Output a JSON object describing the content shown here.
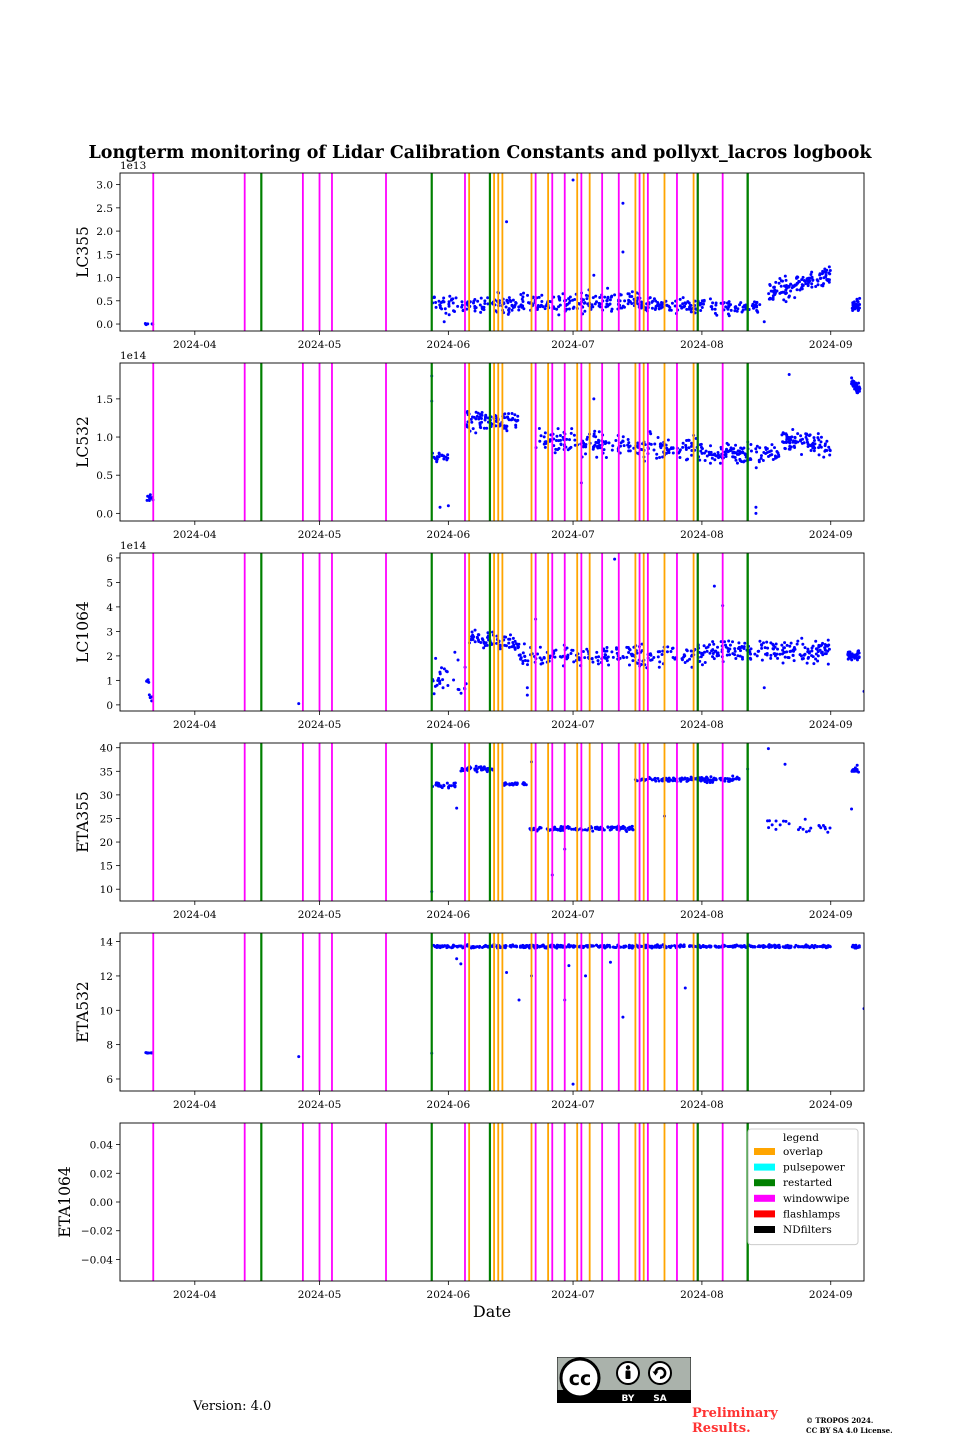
{
  "figure_title": "Longterm monitoring of Lidar Calibration Constants and pollyxt_lacros logbook",
  "footer": {
    "version": "Version: 4.0",
    "preliminary_line1": "Preliminary",
    "preliminary_line2": "Results.",
    "copyright_line1": "© TROPOS 2024.",
    "copyright_line2": "CC BY SA 4.0 License.",
    "license_badge_by": "BY",
    "license_badge_sa": "SA",
    "license_badge_cc": "cc"
  },
  "chart_data": {
    "type": "scatter",
    "xlabel": "Date",
    "x_range": [
      "2024-03-14",
      "2024-09-09"
    ],
    "x_ticks": [
      "2024-04",
      "2024-05",
      "2024-06",
      "2024-07",
      "2024-08",
      "2024-09"
    ],
    "x_tick_dates": [
      "2024-04-01",
      "2024-05-01",
      "2024-06-01",
      "2024-07-01",
      "2024-08-01",
      "2024-09-01"
    ],
    "point_color": "#0000ff",
    "legend": {
      "title": "legend",
      "location": "upper right (bottom panel)",
      "entries": [
        {
          "label": "overlap",
          "color": "#ffa500"
        },
        {
          "label": "pulsepower",
          "color": "#00ffff"
        },
        {
          "label": "restarted",
          "color": "#008000"
        },
        {
          "label": "windowwipe",
          "color": "#ff00ff"
        },
        {
          "label": "flashlamps",
          "color": "#ff0000"
        },
        {
          "label": "NDfilters",
          "color": "#000000"
        }
      ]
    },
    "logbook_events": [
      {
        "date": "2024-03-22",
        "type": "windowwipe"
      },
      {
        "date": "2024-04-13",
        "type": "windowwipe"
      },
      {
        "date": "2024-04-17",
        "type": "restarted"
      },
      {
        "date": "2024-04-27",
        "type": "windowwipe"
      },
      {
        "date": "2024-05-01",
        "type": "windowwipe"
      },
      {
        "date": "2024-05-04",
        "type": "windowwipe"
      },
      {
        "date": "2024-05-17",
        "type": "windowwipe"
      },
      {
        "date": "2024-05-28",
        "type": "restarted"
      },
      {
        "date": "2024-06-05",
        "type": "windowwipe"
      },
      {
        "date": "2024-06-06",
        "type": "overlap"
      },
      {
        "date": "2024-06-11",
        "type": "windowwipe"
      },
      {
        "date": "2024-06-11",
        "type": "restarted"
      },
      {
        "date": "2024-06-12",
        "type": "overlap"
      },
      {
        "date": "2024-06-13",
        "type": "overlap"
      },
      {
        "date": "2024-06-14",
        "type": "overlap"
      },
      {
        "date": "2024-06-21",
        "type": "overlap"
      },
      {
        "date": "2024-06-22",
        "type": "windowwipe"
      },
      {
        "date": "2024-06-25",
        "type": "overlap"
      },
      {
        "date": "2024-06-26",
        "type": "windowwipe"
      },
      {
        "date": "2024-06-29",
        "type": "windowwipe"
      },
      {
        "date": "2024-07-02",
        "type": "overlap"
      },
      {
        "date": "2024-07-03",
        "type": "windowwipe"
      },
      {
        "date": "2024-07-05",
        "type": "overlap"
      },
      {
        "date": "2024-07-08",
        "type": "windowwipe"
      },
      {
        "date": "2024-07-12",
        "type": "windowwipe"
      },
      {
        "date": "2024-07-16",
        "type": "overlap"
      },
      {
        "date": "2024-07-17",
        "type": "windowwipe"
      },
      {
        "date": "2024-07-18",
        "type": "overlap"
      },
      {
        "date": "2024-07-19",
        "type": "windowwipe"
      },
      {
        "date": "2024-07-23",
        "type": "overlap"
      },
      {
        "date": "2024-07-26",
        "type": "windowwipe"
      },
      {
        "date": "2024-07-30",
        "type": "overlap"
      },
      {
        "date": "2024-07-31",
        "type": "windowwipe"
      },
      {
        "date": "2024-07-31",
        "type": "restarted"
      },
      {
        "date": "2024-08-06",
        "type": "windowwipe"
      },
      {
        "date": "2024-08-12",
        "type": "restarted"
      },
      {
        "date": "2024-08-12",
        "type": "restarted"
      }
    ],
    "panels": [
      {
        "ylabel": "LC355",
        "ylim": [
          -0.15,
          3.25
        ],
        "yticks": [
          0.0,
          0.5,
          1.0,
          1.5,
          2.0,
          2.5,
          3.0
        ],
        "ytick_labels": [
          "0.0",
          "0.5",
          "1.0",
          "1.5",
          "2.0",
          "2.5",
          "3.0"
        ],
        "offset_label": "1e13",
        "series": [
          {
            "start": "2024-03-20",
            "end": "2024-03-22",
            "count": 6,
            "center": 0.0,
            "spread": 0.01,
            "trend": 0
          },
          {
            "start": "2024-05-28",
            "end": "2024-07-20",
            "count": 300,
            "center": 0.45,
            "spread": 0.18,
            "trend": 0.05
          },
          {
            "start": "2024-07-20",
            "end": "2024-08-15",
            "count": 140,
            "center": 0.38,
            "spread": 0.12,
            "trend": -0.05
          },
          {
            "start": "2024-08-17",
            "end": "2024-09-01",
            "count": 130,
            "center": 0.85,
            "spread": 0.18,
            "trend": 0.4
          },
          {
            "start": "2024-09-06",
            "end": "2024-09-08",
            "count": 40,
            "center": 0.4,
            "spread": 0.12,
            "trend": 0
          }
        ],
        "outliers": [
          {
            "date": "2024-06-15",
            "value": 2.2
          },
          {
            "date": "2024-07-01",
            "value": 3.1
          },
          {
            "date": "2024-07-13",
            "value": 2.6
          },
          {
            "date": "2024-07-13",
            "value": 1.55
          },
          {
            "date": "2024-07-06",
            "value": 1.05
          },
          {
            "date": "2024-05-31",
            "value": 0.05
          },
          {
            "date": "2024-08-16",
            "value": 0.05
          }
        ]
      },
      {
        "ylabel": "LC532",
        "ylim": [
          -0.1,
          1.97
        ],
        "yticks": [
          0.0,
          0.5,
          1.0,
          1.5
        ],
        "ytick_labels": [
          "0.0",
          "0.5",
          "1.0",
          "1.5"
        ],
        "offset_label": "1e14",
        "series": [
          {
            "start": "2024-03-20",
            "end": "2024-03-22",
            "count": 10,
            "center": 0.18,
            "spread": 0.06,
            "trend": 0
          },
          {
            "start": "2024-05-28",
            "end": "2024-06-01",
            "count": 20,
            "center": 0.75,
            "spread": 0.08,
            "trend": 0
          },
          {
            "start": "2024-06-05",
            "end": "2024-06-18",
            "count": 90,
            "center": 1.2,
            "spread": 0.1,
            "trend": 0
          },
          {
            "start": "2024-06-22",
            "end": "2024-07-31",
            "count": 200,
            "center": 0.9,
            "spread": 0.12,
            "trend": -0.1
          },
          {
            "start": "2024-07-31",
            "end": "2024-08-20",
            "count": 120,
            "center": 0.78,
            "spread": 0.1,
            "trend": 0
          },
          {
            "start": "2024-08-20",
            "end": "2024-09-01",
            "count": 90,
            "center": 0.92,
            "spread": 0.1,
            "trend": -0.1
          },
          {
            "start": "2024-09-06",
            "end": "2024-09-08",
            "count": 50,
            "center": 1.67,
            "spread": 0.06,
            "trend": -0.1
          }
        ],
        "outliers": [
          {
            "date": "2024-05-28",
            "value": 1.8
          },
          {
            "date": "2024-05-28",
            "value": 1.47
          },
          {
            "date": "2024-05-30",
            "value": 0.08
          },
          {
            "date": "2024-06-01",
            "value": 0.1
          },
          {
            "date": "2024-07-03",
            "value": 0.4
          },
          {
            "date": "2024-08-14",
            "value": 0.08
          },
          {
            "date": "2024-08-14",
            "value": 0.0
          },
          {
            "date": "2024-08-22",
            "value": 1.82
          },
          {
            "date": "2024-07-06",
            "value": 1.5
          }
        ]
      },
      {
        "ylabel": "LC1064",
        "ylim": [
          -0.25,
          6.2
        ],
        "yticks": [
          0,
          1,
          2,
          3,
          4,
          5,
          6
        ],
        "ytick_labels": [
          "0",
          "1",
          "2",
          "3",
          "4",
          "5",
          "6"
        ],
        "offset_label": "1e14",
        "series": [
          {
            "start": "2024-03-20",
            "end": "2024-03-21",
            "count": 6,
            "center": 0.98,
            "spread": 0.05,
            "trend": 0
          },
          {
            "start": "2024-03-21",
            "end": "2024-03-22",
            "count": 5,
            "center": 0.3,
            "spread": 0.1,
            "trend": 0
          },
          {
            "start": "2024-05-28",
            "end": "2024-06-06",
            "count": 30,
            "center": 1.1,
            "spread": 0.6,
            "trend": -0.4
          },
          {
            "start": "2024-06-06",
            "end": "2024-06-18",
            "count": 70,
            "center": 2.6,
            "spread": 0.3,
            "trend": -0.3
          },
          {
            "start": "2024-06-18",
            "end": "2024-07-31",
            "count": 180,
            "center": 2.0,
            "spread": 0.35,
            "trend": 0
          },
          {
            "start": "2024-07-31",
            "end": "2024-09-01",
            "count": 200,
            "center": 2.2,
            "spread": 0.35,
            "trend": 0
          },
          {
            "start": "2024-09-05",
            "end": "2024-09-08",
            "count": 40,
            "center": 2.0,
            "spread": 0.15,
            "trend": 0
          }
        ],
        "outliers": [
          {
            "date": "2024-04-26",
            "value": 0.05
          },
          {
            "date": "2024-07-11",
            "value": 5.95
          },
          {
            "date": "2024-08-04",
            "value": 4.85
          },
          {
            "date": "2024-08-06",
            "value": 4.05
          },
          {
            "date": "2024-06-20",
            "value": 0.4
          },
          {
            "date": "2024-06-20",
            "value": 0.7
          },
          {
            "date": "2024-08-16",
            "value": 0.7
          },
          {
            "date": "2024-09-09",
            "value": 0.55
          },
          {
            "date": "2024-06-22",
            "value": 3.5
          }
        ]
      },
      {
        "ylabel": "ETA355",
        "ylim": [
          7.5,
          41
        ],
        "yticks": [
          10,
          15,
          20,
          25,
          30,
          35,
          40
        ],
        "ytick_labels": [
          "10",
          "15",
          "20",
          "25",
          "30",
          "35",
          "40"
        ],
        "offset_label": "",
        "series": [
          {
            "start": "2024-05-28",
            "end": "2024-06-03",
            "count": 25,
            "center": 32,
            "spread": 0.6,
            "trend": 0
          },
          {
            "start": "2024-06-04",
            "end": "2024-06-12",
            "count": 40,
            "center": 35.5,
            "spread": 0.5,
            "trend": 0
          },
          {
            "start": "2024-06-14",
            "end": "2024-06-20",
            "count": 25,
            "center": 32.3,
            "spread": 0.4,
            "trend": 0
          },
          {
            "start": "2024-06-20",
            "end": "2024-07-16",
            "count": 110,
            "center": 22.8,
            "spread": 0.4,
            "trend": 0
          },
          {
            "start": "2024-07-16",
            "end": "2024-08-10",
            "count": 130,
            "center": 33.3,
            "spread": 0.4,
            "trend": 0
          },
          {
            "start": "2024-08-16",
            "end": "2024-09-01",
            "count": 25,
            "center": 23.5,
            "spread": 1.2,
            "trend": -2
          },
          {
            "start": "2024-09-06",
            "end": "2024-09-08",
            "count": 12,
            "center": 35.5,
            "spread": 0.8,
            "trend": 0
          }
        ],
        "outliers": [
          {
            "date": "2024-05-28",
            "value": 9.5
          },
          {
            "date": "2024-06-03",
            "value": 27.2
          },
          {
            "date": "2024-06-21",
            "value": 37.0
          },
          {
            "date": "2024-06-26",
            "value": 13.0
          },
          {
            "date": "2024-06-29",
            "value": 18.5
          },
          {
            "date": "2024-07-23",
            "value": 25.5
          },
          {
            "date": "2024-08-17",
            "value": 39.8
          },
          {
            "date": "2024-08-21",
            "value": 36.5
          },
          {
            "date": "2024-09-06",
            "value": 27.0
          },
          {
            "date": "2024-08-12",
            "value": 35.5
          }
        ]
      },
      {
        "ylabel": "ETA532",
        "ylim": [
          5.3,
          14.5
        ],
        "yticks": [
          6,
          8,
          10,
          12,
          14
        ],
        "ytick_labels": [
          "6",
          "8",
          "10",
          "12",
          "14"
        ],
        "offset_label": "",
        "series": [
          {
            "start": "2024-03-20",
            "end": "2024-03-22",
            "count": 8,
            "center": 7.5,
            "spread": 0.05,
            "trend": 0
          },
          {
            "start": "2024-05-28",
            "end": "2024-09-01",
            "count": 520,
            "center": 13.72,
            "spread": 0.07,
            "trend": 0
          },
          {
            "start": "2024-09-06",
            "end": "2024-09-08",
            "count": 14,
            "center": 13.7,
            "spread": 0.08,
            "trend": 0
          }
        ],
        "outliers": [
          {
            "date": "2024-04-26",
            "value": 7.3
          },
          {
            "date": "2024-05-28",
            "value": 7.5
          },
          {
            "date": "2024-06-03",
            "value": 13.0
          },
          {
            "date": "2024-06-04",
            "value": 12.7
          },
          {
            "date": "2024-06-15",
            "value": 12.2
          },
          {
            "date": "2024-06-18",
            "value": 10.6
          },
          {
            "date": "2024-06-21",
            "value": 12.0
          },
          {
            "date": "2024-06-29",
            "value": 10.6
          },
          {
            "date": "2024-06-30",
            "value": 12.6
          },
          {
            "date": "2024-07-01",
            "value": 5.7
          },
          {
            "date": "2024-07-04",
            "value": 12.0
          },
          {
            "date": "2024-07-10",
            "value": 12.8
          },
          {
            "date": "2024-07-13",
            "value": 9.6
          },
          {
            "date": "2024-07-28",
            "value": 11.3
          },
          {
            "date": "2024-09-09",
            "value": 10.1
          }
        ]
      },
      {
        "ylabel": "ETA1064",
        "ylim": [
          -0.055,
          0.055
        ],
        "yticks": [
          -0.04,
          -0.02,
          0.0,
          0.02,
          0.04
        ],
        "ytick_labels": [
          "−0.04",
          "−0.02",
          "0.00",
          "0.02",
          "0.04"
        ],
        "offset_label": "",
        "series": [],
        "outliers": []
      }
    ]
  }
}
